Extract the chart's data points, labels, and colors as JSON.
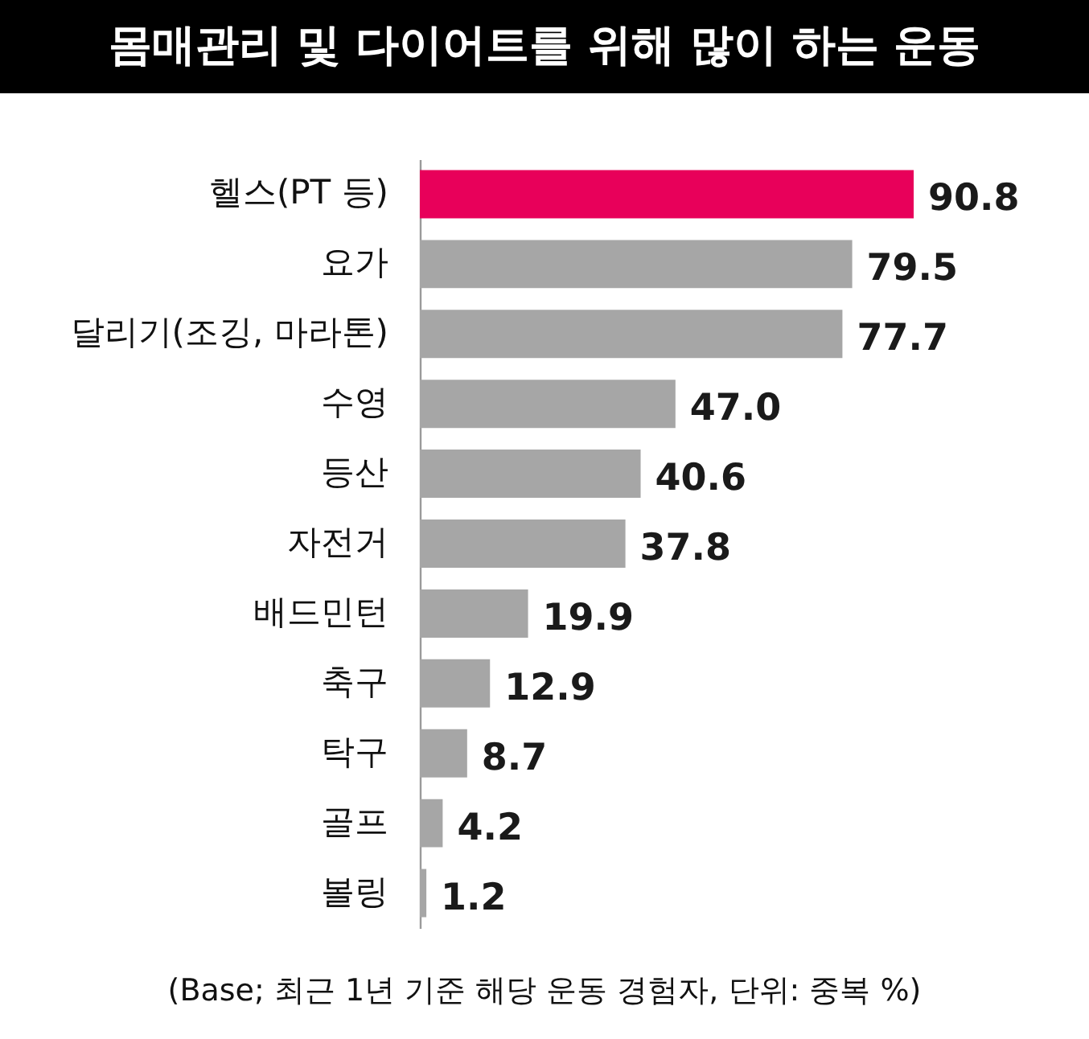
{
  "chart_data": {
    "type": "bar",
    "orientation": "horizontal",
    "title": "몸매관리 및 다이어트를 위해 많이 하는 운동",
    "categories": [
      "헬스(PT 등)",
      "요가",
      "달리기(조깅, 마라톤)",
      "수영",
      "등산",
      "자전거",
      "배드민턴",
      "축구",
      "탁구",
      "골프",
      "볼링"
    ],
    "values": [
      90.8,
      79.5,
      77.7,
      47.0,
      40.6,
      37.8,
      19.9,
      12.9,
      8.7,
      4.2,
      1.2
    ],
    "value_labels": [
      "90.8",
      "79.5",
      "77.7",
      "47.0",
      "40.6",
      "37.8",
      "19.9",
      "12.9",
      "8.7",
      "4.2",
      "1.2"
    ],
    "colors": [
      "#e8005a",
      "#a6a6a6",
      "#a6a6a6",
      "#a6a6a6",
      "#a6a6a6",
      "#a6a6a6",
      "#a6a6a6",
      "#a6a6a6",
      "#a6a6a6",
      "#a6a6a6",
      "#a6a6a6"
    ],
    "tick_labels": "y",
    "grid": false,
    "annotations": [
      "(Base; 최근 1년 기준 해당 운동 경험자, 단위: 중복 %)"
    ]
  }
}
